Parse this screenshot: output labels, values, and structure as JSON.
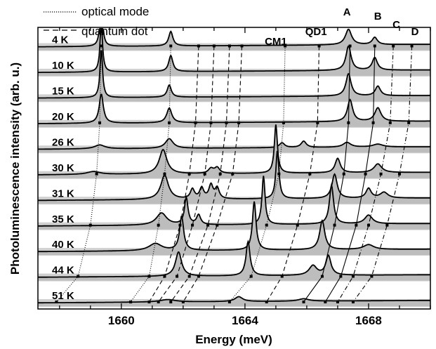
{
  "chart_data": {
    "type": "line",
    "title": "",
    "xlabel": "Energy (meV)",
    "ylabel": "Photoluminescence intensity (arb. u.)",
    "xlim": [
      1657.3,
      1670.0
    ],
    "x_ticks": [
      1660,
      1664,
      1668
    ],
    "y_ticks": "none (arbitrary units, vertically offset spectra)",
    "grid": false,
    "shading": "gray fill under each spectrum",
    "legend": {
      "placement": "top-left",
      "entries": [
        {
          "label": "optical mode",
          "style": "dotted"
        },
        {
          "label": "quantum dot",
          "style": "dashed"
        }
      ]
    },
    "peak_labels": [
      "CM1",
      "QD1",
      "A",
      "B",
      "C",
      "D"
    ],
    "series": [
      {
        "name": "4 K",
        "peaks": [
          [
            1659.35,
            1.0,
            0.05
          ],
          [
            1661.6,
            0.3,
            0.08
          ],
          [
            1667.35,
            0.32,
            0.12
          ],
          [
            1668.2,
            0.15,
            0.1
          ]
        ]
      },
      {
        "name": "10 K",
        "peaks": [
          [
            1659.35,
            1.0,
            0.05
          ],
          [
            1661.6,
            0.33,
            0.08
          ],
          [
            1667.35,
            0.5,
            0.1
          ],
          [
            1668.2,
            0.26,
            0.1
          ]
        ]
      },
      {
        "name": "15 K",
        "peaks": [
          [
            1659.35,
            1.0,
            0.05
          ],
          [
            1661.55,
            0.25,
            0.08
          ],
          [
            1667.35,
            0.46,
            0.1
          ],
          [
            1668.3,
            0.2,
            0.1
          ]
        ]
      },
      {
        "name": "20 K",
        "peaks": [
          [
            1659.35,
            0.6,
            0.08
          ],
          [
            1661.55,
            0.3,
            0.1
          ],
          [
            1667.4,
            0.45,
            0.1
          ],
          [
            1668.3,
            0.28,
            0.12
          ]
        ]
      },
      {
        "name": "26 K",
        "peaks": [
          [
            1659.3,
            0.08,
            0.2
          ],
          [
            1661.55,
            0.2,
            0.15
          ],
          [
            1665.2,
            0.1,
            0.1
          ],
          [
            1665.9,
            0.13,
            0.1
          ],
          [
            1667.3,
            0.1,
            0.15
          ],
          [
            1668.3,
            0.06,
            0.2
          ]
        ]
      },
      {
        "name": "30 K",
        "peaks": [
          [
            1659.1,
            0.06,
            0.25
          ],
          [
            1661.35,
            0.5,
            0.15
          ],
          [
            1662.9,
            0.1,
            0.1
          ],
          [
            1663.1,
            0.12,
            0.1
          ],
          [
            1665.0,
            1.0,
            0.06
          ],
          [
            1667.0,
            0.3,
            0.1
          ],
          [
            1668.3,
            0.18,
            0.15
          ]
        ]
      },
      {
        "name": "31 K",
        "peaks": [
          [
            1661.4,
            0.5,
            0.15
          ],
          [
            1662.3,
            0.2,
            0.08
          ],
          [
            1662.6,
            0.22,
            0.08
          ],
          [
            1662.9,
            0.28,
            0.08
          ],
          [
            1663.1,
            0.22,
            0.08
          ],
          [
            1665.05,
            1.0,
            0.06
          ],
          [
            1666.9,
            0.5,
            0.1
          ],
          [
            1668.0,
            0.2,
            0.1
          ],
          [
            1668.5,
            0.12,
            0.15
          ]
        ]
      },
      {
        "name": "35 K",
        "peaks": [
          [
            1661.3,
            0.25,
            0.2
          ],
          [
            1662.1,
            0.55,
            0.07
          ],
          [
            1662.5,
            0.2,
            0.08
          ],
          [
            1664.6,
            1.0,
            0.06
          ],
          [
            1666.8,
            0.8,
            0.08
          ],
          [
            1668.0,
            0.18,
            0.15
          ]
        ]
      },
      {
        "name": "40 K",
        "peaks": [
          [
            1661.1,
            0.15,
            0.25
          ],
          [
            1661.95,
            0.7,
            0.08
          ],
          [
            1664.3,
            1.0,
            0.07
          ],
          [
            1666.5,
            0.6,
            0.1
          ],
          [
            1668.0,
            0.1,
            0.2
          ]
        ]
      },
      {
        "name": "44 K",
        "peaks": [
          [
            1661.85,
            0.5,
            0.12
          ],
          [
            1664.1,
            0.7,
            0.08
          ],
          [
            1666.2,
            0.2,
            0.15
          ],
          [
            1666.7,
            0.4,
            0.1
          ]
        ]
      },
      {
        "name": "51 K",
        "peaks": [
          [
            1661.5,
            0.05,
            0.3
          ],
          [
            1663.8,
            0.1,
            0.15
          ],
          [
            1665.9,
            0.05,
            0.2
          ]
        ]
      }
    ],
    "peak_format": "[energy_meV, relative_amplitude, half_width_meV]"
  }
}
